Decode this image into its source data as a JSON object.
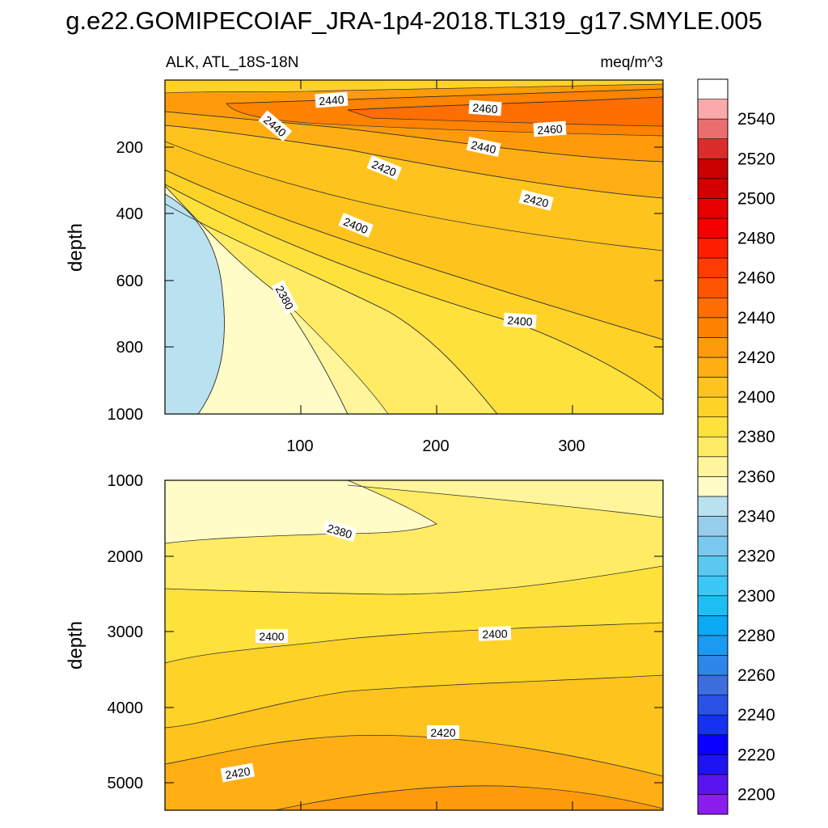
{
  "figure_title": "g.e22.GOMIPECOIAF_JRA-1p4-2018.TL319_g17.SMYLE.005",
  "chart_data": [
    {
      "type": "contour",
      "panel": "upper",
      "title_left": "ALK, ATL_18S-18N",
      "title_right": "meq/m^3",
      "ylabel": "depth",
      "xlabel": "",
      "xlim": [
        1,
        366
      ],
      "ylim": [
        1000,
        5
      ],
      "xticks": [
        100,
        200,
        300
      ],
      "xtick_labels": [
        "100",
        "200",
        "300"
      ],
      "yticks": [
        200,
        400,
        600,
        800,
        1000
      ],
      "ytick_labels": [
        "200",
        "400",
        "600",
        "800",
        "1000"
      ],
      "contour_labels": [
        "2440",
        "2440",
        "2460",
        "2460",
        "2440",
        "2420",
        "2420",
        "2400",
        "2380",
        "2400"
      ]
    },
    {
      "type": "contour",
      "panel": "lower",
      "ylabel": "depth",
      "xlim": [
        1,
        366
      ],
      "ylim": [
        5375,
        1000
      ],
      "yticks": [
        1000,
        2000,
        3000,
        4000,
        5000
      ],
      "ytick_labels": [
        "1000",
        "2000",
        "3000",
        "4000",
        "5000"
      ],
      "contour_labels": [
        "2380",
        "2400",
        "2400",
        "2420",
        "2420"
      ]
    }
  ],
  "colorbar": {
    "min": 2190,
    "max": 2560,
    "step": 10,
    "labels": [
      "2540",
      "2520",
      "2500",
      "2480",
      "2460",
      "2440",
      "2420",
      "2400",
      "2380",
      "2360",
      "2340",
      "2320",
      "2300",
      "2280",
      "2260",
      "2240",
      "2220",
      "2200"
    ],
    "colors": [
      "#8C1DEF",
      "#5A14EF",
      "#1E14EF",
      "#0A00FF",
      "#1432EF",
      "#2A52E5",
      "#3C6EE0",
      "#2E86E8",
      "#1A9AF0",
      "#0AAAF5",
      "#1EBEF5",
      "#3CC8F5",
      "#5AC8F0",
      "#78C8EF",
      "#96CDEB",
      "#B9E1F0",
      "#FFFCC8",
      "#FFF59B",
      "#FFEB64",
      "#FFE13C",
      "#FFD228",
      "#FFC31E",
      "#FFAF14",
      "#FF9B0A",
      "#FF8200",
      "#FF6E00",
      "#FF5500",
      "#FF3C00",
      "#FF1E00",
      "#F50000",
      "#E60000",
      "#D20000",
      "#C80000",
      "#DC2D2D",
      "#EB6E6E",
      "#FAAAAA"
    ]
  }
}
